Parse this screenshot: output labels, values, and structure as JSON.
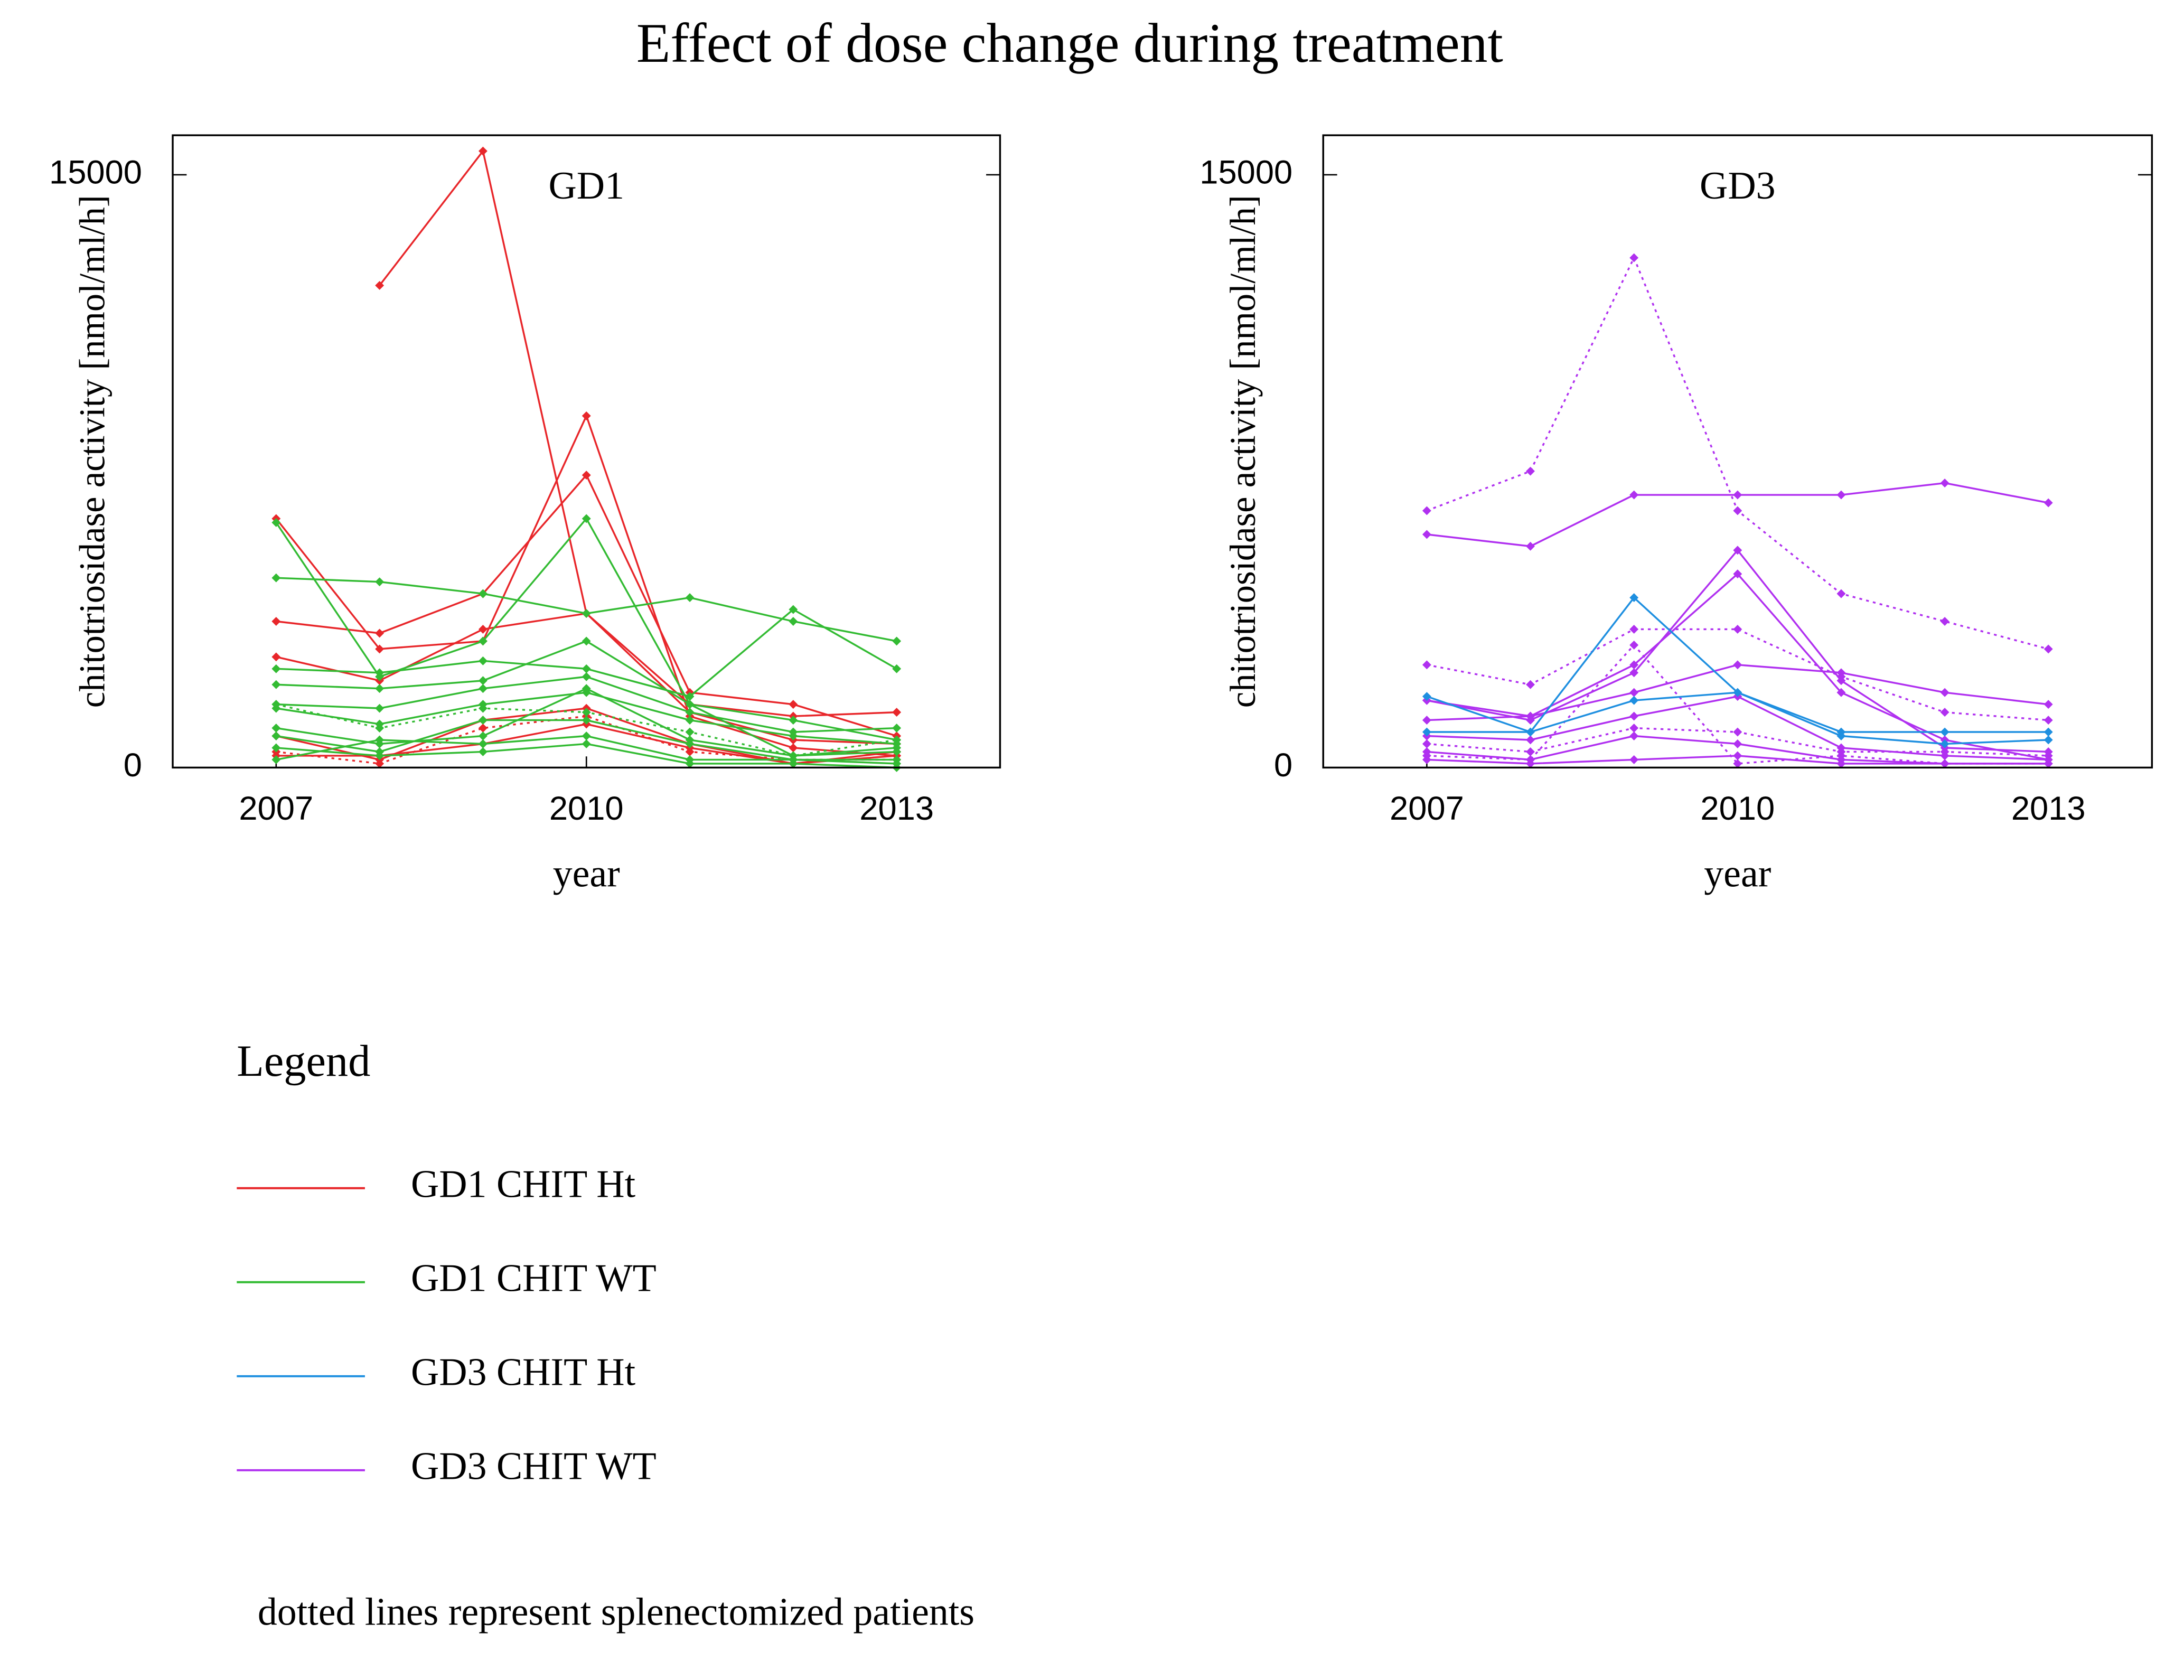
{
  "title": "Effect of dose change during treatment",
  "legend_title": "Legend",
  "legend": [
    {
      "label": "GD1 CHIT Ht",
      "color": "#e8262a"
    },
    {
      "label": "GD1 CHIT WT",
      "color": "#33bb33"
    },
    {
      "label": "GD3 CHIT Ht",
      "color": "#1e8fe0"
    },
    {
      "label": "GD3 CHIT WT",
      "color": "#b030f0"
    }
  ],
  "note": "dotted lines represent splenectomized patients",
  "chart_data": [
    {
      "type": "line",
      "title": "GD1",
      "x_label": "year",
      "y_label": "chitotriosidase activity [nmol/ml/h]",
      "x": [
        2007,
        2008,
        2009,
        2010,
        2011,
        2012,
        2013
      ],
      "xlim": [
        2006,
        2014
      ],
      "xticks": [
        2007,
        2010,
        2013
      ],
      "ylim": [
        0,
        16000
      ],
      "yticks": [
        0,
        15000
      ],
      "series": [
        {
          "color": "#e8262a",
          "dashed": false,
          "values": [
            6300,
            3000,
            3200,
            8900,
            1300,
            500,
            300
          ]
        },
        {
          "color": "#e8262a",
          "dashed": false,
          "values": [
            3700,
            3400,
            4400,
            7400,
            1900,
            1600,
            800
          ]
        },
        {
          "color": "#e8262a",
          "dashed": false,
          "values": [
            2800,
            2200,
            3500,
            3900,
            1600,
            1300,
            1400
          ]
        },
        {
          "color": "#e8262a",
          "dashed": false,
          "values": [
            null,
            12200,
            15600,
            3900,
            1400,
            700,
            600
          ]
        },
        {
          "color": "#e8262a",
          "dashed": false,
          "values": [
            800,
            200,
            1200,
            1500,
            600,
            100,
            400
          ]
        },
        {
          "color": "#e8262a",
          "dashed": true,
          "values": [
            400,
            100,
            1000,
            1300,
            400,
            200,
            200
          ]
        },
        {
          "color": "#e8262a",
          "dashed": false,
          "values": [
            300,
            300,
            600,
            1100,
            500,
            100,
            300
          ]
        },
        {
          "color": "#33bb33",
          "dashed": false,
          "values": [
            6200,
            2300,
            3200,
            6300,
            1600,
            300,
            500
          ]
        },
        {
          "color": "#33bb33",
          "dashed": false,
          "values": [
            4800,
            4700,
            4400,
            3900,
            4300,
            3700,
            3200
          ]
        },
        {
          "color": "#33bb33",
          "dashed": false,
          "values": [
            2500,
            2400,
            2700,
            2500,
            1800,
            4000,
            2500
          ]
        },
        {
          "color": "#33bb33",
          "dashed": false,
          "values": [
            2100,
            2000,
            2200,
            3200,
            1600,
            1200,
            700
          ]
        },
        {
          "color": "#33bb33",
          "dashed": false,
          "values": [
            1600,
            1500,
            2000,
            2300,
            1400,
            900,
            1000
          ]
        },
        {
          "color": "#33bb33",
          "dashed": false,
          "values": [
            1500,
            1100,
            1600,
            1900,
            1200,
            800,
            600
          ]
        },
        {
          "color": "#33bb33",
          "dashed": false,
          "values": [
            1000,
            600,
            800,
            2000,
            700,
            300,
            400
          ]
        },
        {
          "color": "#33bb33",
          "dashed": false,
          "values": [
            800,
            400,
            1200,
            1200,
            600,
            200,
            100
          ]
        },
        {
          "color": "#33bb33",
          "dashed": false,
          "values": [
            200,
            700,
            600,
            800,
            200,
            200,
            200
          ]
        },
        {
          "color": "#33bb33",
          "dashed": true,
          "values": [
            1600,
            1000,
            1500,
            1400,
            900,
            300,
            700
          ]
        },
        {
          "color": "#33bb33",
          "dashed": false,
          "values": [
            500,
            300,
            400,
            600,
            100,
            100,
            0
          ]
        }
      ]
    },
    {
      "type": "line",
      "title": "GD3",
      "x_label": "year",
      "y_label": "chitotriosidase activity [nmol/ml/h]",
      "x": [
        2007,
        2008,
        2009,
        2010,
        2011,
        2012,
        2013
      ],
      "xlim": [
        2006,
        2014
      ],
      "xticks": [
        2007,
        2010,
        2013
      ],
      "ylim": [
        0,
        16000
      ],
      "yticks": [
        0,
        15000
      ],
      "series": [
        {
          "color": "#b030f0",
          "dashed": true,
          "values": [
            6500,
            7500,
            12900,
            6500,
            4400,
            3700,
            3000
          ]
        },
        {
          "color": "#b030f0",
          "dashed": false,
          "values": [
            5900,
            5600,
            6900,
            6900,
            6900,
            7200,
            6700
          ]
        },
        {
          "color": "#b030f0",
          "dashed": true,
          "values": [
            2600,
            2100,
            3500,
            3500,
            2300,
            1400,
            1200
          ]
        },
        {
          "color": "#b030f0",
          "dashed": false,
          "values": [
            1700,
            1200,
            2400,
            5500,
            2200,
            500,
            400
          ]
        },
        {
          "color": "#b030f0",
          "dashed": false,
          "values": [
            1700,
            1300,
            2600,
            4900,
            1900,
            700,
            200
          ]
        },
        {
          "color": "#b030f0",
          "dashed": false,
          "values": [
            1200,
            1300,
            1900,
            2600,
            2400,
            1900,
            1600
          ]
        },
        {
          "color": "#b030f0",
          "dashed": false,
          "values": [
            800,
            700,
            1300,
            1800,
            500,
            300,
            200
          ]
        },
        {
          "color": "#b030f0",
          "dashed": true,
          "values": [
            600,
            400,
            1000,
            900,
            400,
            400,
            300
          ]
        },
        {
          "color": "#b030f0",
          "dashed": false,
          "values": [
            400,
            200,
            800,
            600,
            200,
            100,
            100
          ]
        },
        {
          "color": "#b030f0",
          "dashed": false,
          "values": [
            200,
            100,
            200,
            300,
            100,
            100,
            100
          ]
        },
        {
          "color": "#b030f0",
          "dashed": true,
          "values": [
            300,
            200,
            3100,
            100,
            300,
            100,
            100
          ]
        },
        {
          "color": "#1e8fe0",
          "dashed": false,
          "values": [
            1800,
            900,
            4300,
            1900,
            900,
            900,
            900
          ]
        },
        {
          "color": "#1e8fe0",
          "dashed": false,
          "values": [
            900,
            900,
            1700,
            1900,
            800,
            600,
            700
          ]
        }
      ]
    }
  ]
}
